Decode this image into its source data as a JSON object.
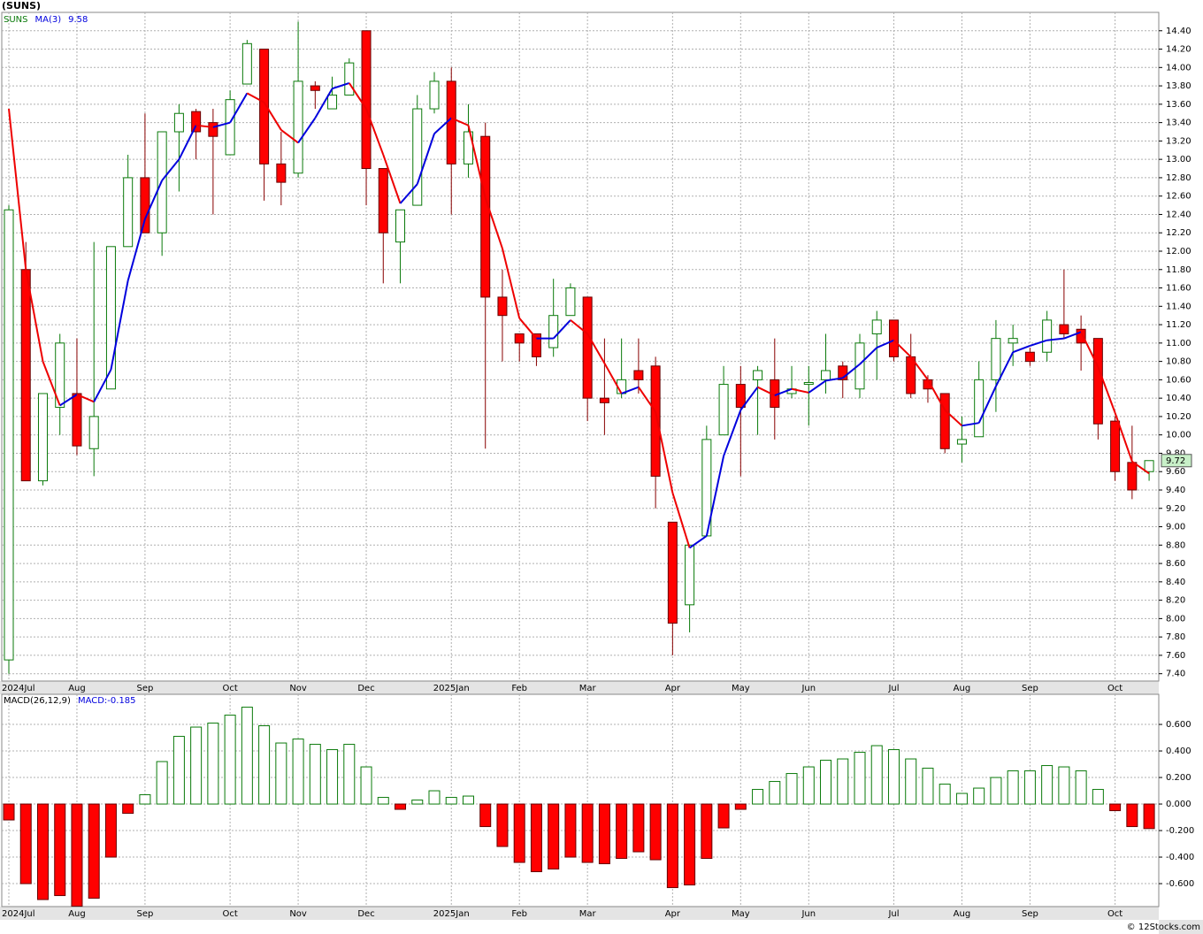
{
  "chart_data": [
    {
      "type": "candlestick",
      "title": "(SUNS)",
      "symbol": "SUNS",
      "symbol_color": "#0a7a0a",
      "categories": [
        "2024Jul",
        null,
        null,
        null,
        "Aug",
        null,
        null,
        null,
        "Sep",
        null,
        null,
        null,
        null,
        "Oct",
        null,
        null,
        null,
        "Nov",
        null,
        null,
        null,
        "Dec",
        null,
        null,
        null,
        null,
        "2025Jan",
        null,
        null,
        null,
        "Feb",
        null,
        null,
        null,
        "Mar",
        null,
        null,
        null,
        null,
        "Apr",
        null,
        null,
        null,
        "May",
        null,
        null,
        null,
        "Jun",
        null,
        null,
        null,
        null,
        "Jul",
        null,
        null,
        null,
        "Aug",
        null,
        null,
        null,
        "Sep",
        null,
        null,
        null,
        null,
        "Oct",
        null,
        null
      ],
      "open": [
        7.55,
        11.8,
        9.5,
        10.3,
        10.45,
        9.85,
        10.5,
        12.05,
        12.8,
        12.2,
        13.3,
        13.52,
        13.4,
        13.05,
        13.82,
        14.2,
        12.95,
        12.85,
        13.8,
        13.55,
        13.7,
        14.4,
        12.9,
        12.1,
        12.5,
        13.55,
        13.85,
        12.95,
        13.25,
        11.5,
        11.1,
        11.1,
        10.95,
        11.3,
        11.5,
        10.4,
        10.45,
        10.7,
        10.75,
        9.05,
        8.15,
        8.9,
        10.0,
        10.55,
        10.6,
        10.6,
        10.45,
        10.55,
        10.6,
        10.75,
        10.5,
        11.1,
        11.25,
        10.85,
        10.6,
        10.45,
        9.9,
        9.98,
        10.6,
        11.0,
        10.9,
        10.9,
        11.2,
        11.15,
        11.05,
        10.15,
        9.7,
        9.6
      ],
      "high": [
        12.5,
        12.1,
        10.45,
        11.1,
        11.05,
        12.1,
        12.05,
        13.05,
        13.5,
        13.3,
        13.6,
        13.55,
        13.55,
        13.75,
        14.3,
        14.2,
        13.3,
        14.5,
        13.85,
        13.9,
        14.1,
        14.4,
        12.9,
        12.45,
        13.7,
        13.95,
        14.0,
        13.6,
        13.4,
        11.8,
        11.1,
        11.1,
        11.7,
        11.65,
        11.5,
        11.05,
        11.05,
        11.05,
        10.85,
        9.05,
        8.8,
        10.1,
        10.75,
        10.75,
        10.75,
        11.05,
        10.75,
        10.75,
        11.1,
        10.8,
        11.1,
        11.35,
        11.25,
        11.1,
        10.65,
        10.45,
        10.2,
        10.8,
        11.25,
        11.2,
        10.95,
        11.35,
        11.8,
        11.3,
        11.05,
        10.2,
        10.1,
        9.72
      ],
      "low": [
        7.4,
        9.5,
        9.45,
        10.0,
        9.78,
        9.55,
        10.5,
        12.05,
        12.2,
        11.95,
        12.65,
        13.0,
        12.4,
        13.05,
        13.82,
        12.55,
        12.5,
        12.8,
        13.55,
        13.55,
        13.7,
        12.5,
        11.65,
        11.65,
        12.5,
        13.5,
        12.4,
        12.8,
        9.85,
        10.8,
        10.8,
        10.75,
        10.85,
        11.3,
        10.15,
        10.0,
        10.4,
        10.45,
        9.2,
        7.6,
        7.85,
        8.9,
        10.0,
        9.55,
        10.0,
        9.95,
        10.4,
        10.1,
        10.45,
        10.4,
        10.4,
        10.6,
        10.8,
        10.4,
        10.35,
        9.8,
        9.7,
        9.98,
        10.25,
        10.75,
        10.75,
        10.8,
        11.05,
        10.7,
        9.95,
        9.5,
        9.3,
        9.5
      ],
      "close": [
        12.45,
        9.5,
        10.45,
        11.0,
        9.88,
        10.2,
        12.05,
        12.8,
        12.2,
        13.3,
        13.5,
        13.3,
        13.25,
        13.65,
        14.26,
        12.95,
        12.75,
        13.85,
        13.75,
        13.7,
        14.05,
        12.9,
        12.2,
        12.45,
        13.55,
        13.85,
        12.95,
        13.3,
        11.5,
        11.3,
        11.0,
        10.85,
        11.3,
        11.6,
        10.4,
        10.35,
        10.6,
        10.6,
        9.55,
        7.95,
        8.8,
        9.95,
        10.55,
        10.3,
        10.7,
        10.3,
        10.5,
        10.57,
        10.7,
        10.6,
        11.0,
        11.25,
        10.85,
        10.45,
        10.5,
        9.85,
        9.95,
        10.6,
        11.05,
        11.05,
        10.8,
        11.25,
        11.1,
        11.0,
        10.12,
        9.6,
        9.4,
        9.72
      ],
      "up_color": "#0a7a0a",
      "down_color": "#ff0000",
      "last_color": "#c8f0c8",
      "ma": {
        "name": "MA(3)",
        "rise_color": "#0000dd",
        "fall_color": "#ee0000",
        "values": [
          13.55,
          11.8,
          10.8,
          10.32,
          10.44,
          10.36,
          10.71,
          11.68,
          12.35,
          12.77,
          13.0,
          13.37,
          13.35,
          13.4,
          13.72,
          13.62,
          13.32,
          13.18,
          13.45,
          13.77,
          13.83,
          13.55,
          13.05,
          12.52,
          12.73,
          13.28,
          13.45,
          13.37,
          12.58,
          12.03,
          11.27,
          11.05,
          11.05,
          11.25,
          11.1,
          10.78,
          10.45,
          10.52,
          10.25,
          9.37,
          8.77,
          8.9,
          9.77,
          10.27,
          10.52,
          10.43,
          10.5,
          10.46,
          10.59,
          10.62,
          10.77,
          10.95,
          11.03,
          10.85,
          10.6,
          10.27,
          10.1,
          10.13,
          10.53,
          10.9,
          10.97,
          11.03,
          11.05,
          11.12,
          10.74,
          10.24,
          9.71,
          9.58
        ]
      },
      "ylim": [
        7.32,
        14.6
      ],
      "yticks": [
        {
          "value": 7.4,
          "label": "7.40"
        },
        {
          "value": 7.6,
          "label": "7.60"
        },
        {
          "value": 7.8,
          "label": "7.80"
        },
        {
          "value": 8.0,
          "label": "8.00"
        },
        {
          "value": 8.2,
          "label": "8.20"
        },
        {
          "value": 8.4,
          "label": "8.40"
        },
        {
          "value": 8.6,
          "label": "8.60"
        },
        {
          "value": 8.8,
          "label": "8.80"
        },
        {
          "value": 9.0,
          "label": "9.00"
        },
        {
          "value": 9.2,
          "label": "9.20"
        },
        {
          "value": 9.4,
          "label": "9.40"
        },
        {
          "value": 9.6,
          "label": "9.60"
        },
        {
          "value": 9.8,
          "label": "9.80"
        },
        {
          "value": 10.0,
          "label": "10.00"
        },
        {
          "value": 10.2,
          "label": "10.20"
        },
        {
          "value": 10.4,
          "label": "10.40"
        },
        {
          "value": 10.6,
          "label": "10.60"
        },
        {
          "value": 10.8,
          "label": "10.80"
        },
        {
          "value": 11.0,
          "label": "11.00"
        },
        {
          "value": 11.2,
          "label": "11.20"
        },
        {
          "value": 11.4,
          "label": "11.40"
        },
        {
          "value": 11.6,
          "label": "11.60"
        },
        {
          "value": 11.8,
          "label": "11.80"
        },
        {
          "value": 12.0,
          "label": "12.00"
        },
        {
          "value": 12.2,
          "label": "12.20"
        },
        {
          "value": 12.4,
          "label": "12.40"
        },
        {
          "value": 12.6,
          "label": "12.60"
        },
        {
          "value": 12.8,
          "label": "12.80"
        },
        {
          "value": 13.0,
          "label": "13.00"
        },
        {
          "value": 13.2,
          "label": "13.20"
        },
        {
          "value": 13.4,
          "label": "13.40"
        },
        {
          "value": 13.6,
          "label": "13.60"
        },
        {
          "value": 13.8,
          "label": "13.80"
        },
        {
          "value": 14.0,
          "label": "14.00"
        },
        {
          "value": 14.2,
          "label": "14.20"
        },
        {
          "value": 14.4,
          "label": "14.40"
        }
      ],
      "grid": true
    },
    {
      "type": "bar",
      "name": "MACD(26,12,9)",
      "current_label": "MACD:-0.185",
      "label_color": "#0000dd",
      "up_color": "#0a7a0a",
      "down_color": "#ff0000",
      "values": [
        -0.12,
        -0.6,
        -0.72,
        -0.69,
        -0.77,
        -0.71,
        -0.4,
        -0.07,
        0.07,
        0.32,
        0.51,
        0.58,
        0.61,
        0.67,
        0.73,
        0.59,
        0.46,
        0.49,
        0.45,
        0.41,
        0.45,
        0.28,
        0.05,
        -0.04,
        0.03,
        0.1,
        0.05,
        0.06,
        -0.17,
        -0.32,
        -0.44,
        -0.51,
        -0.49,
        -0.4,
        -0.44,
        -0.45,
        -0.41,
        -0.36,
        -0.42,
        -0.63,
        -0.61,
        -0.41,
        -0.18,
        -0.04,
        0.11,
        0.17,
        0.23,
        0.28,
        0.33,
        0.34,
        0.39,
        0.44,
        0.41,
        0.34,
        0.27,
        0.15,
        0.08,
        0.12,
        0.2,
        0.25,
        0.25,
        0.29,
        0.28,
        0.25,
        0.11,
        -0.05,
        -0.17,
        -0.185
      ],
      "ylim": [
        -0.773,
        0.827
      ],
      "yticks": [
        {
          "value": 0.6,
          "label": "0.600"
        },
        {
          "value": 0.4,
          "label": "0.400"
        },
        {
          "value": 0.2,
          "label": "0.200"
        },
        {
          "value": 0,
          "label": "0.000"
        },
        {
          "value": -0.2,
          "label": "-0.200"
        },
        {
          "value": -0.4,
          "label": "-0.400"
        },
        {
          "value": -0.6,
          "label": "-0.600"
        }
      ],
      "grid": true
    }
  ],
  "footer": "© 12Stocks.com"
}
